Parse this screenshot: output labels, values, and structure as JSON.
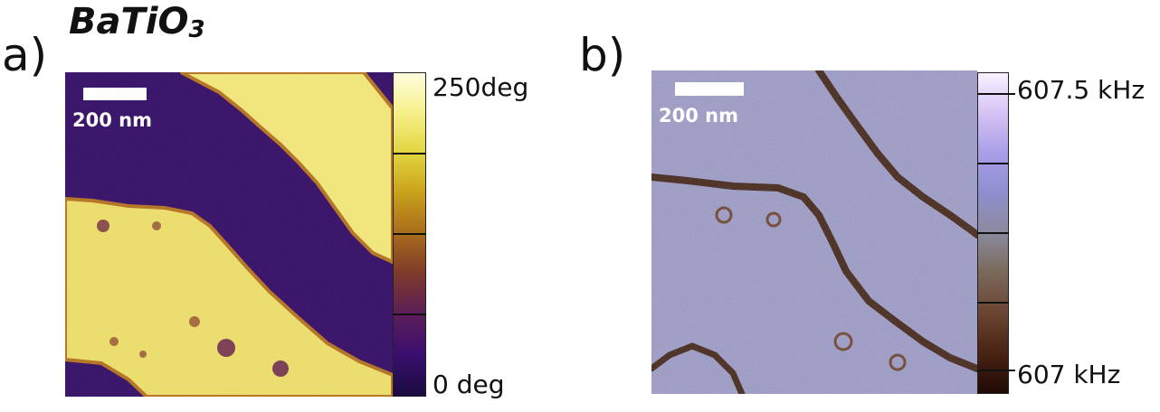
{
  "figure": {
    "panel_a": {
      "label": "a)",
      "title_main": "BaTiO",
      "title_sub": "3",
      "scale_bar": "200 nm",
      "colorbar_top": "250deg",
      "colorbar_bottom": "0 deg",
      "colormap": [
        "#fffde0",
        "#f5f08a",
        "#e2d43f",
        "#c9a21b",
        "#a86a1c",
        "#7e3a2a",
        "#5b1d5a",
        "#3b0f70",
        "#1a0c40"
      ]
    },
    "panel_b": {
      "label": "b)",
      "scale_bar": "200 nm",
      "colorbar_top": "607.5 kHz",
      "colorbar_bottom": "607 kHz",
      "colormap": [
        "#f8f2ff",
        "#d7c4f5",
        "#a89ee8",
        "#8f8fd0",
        "#8a8a9e",
        "#7a6a5c",
        "#6b4432",
        "#4a2414",
        "#200a04"
      ]
    }
  }
}
